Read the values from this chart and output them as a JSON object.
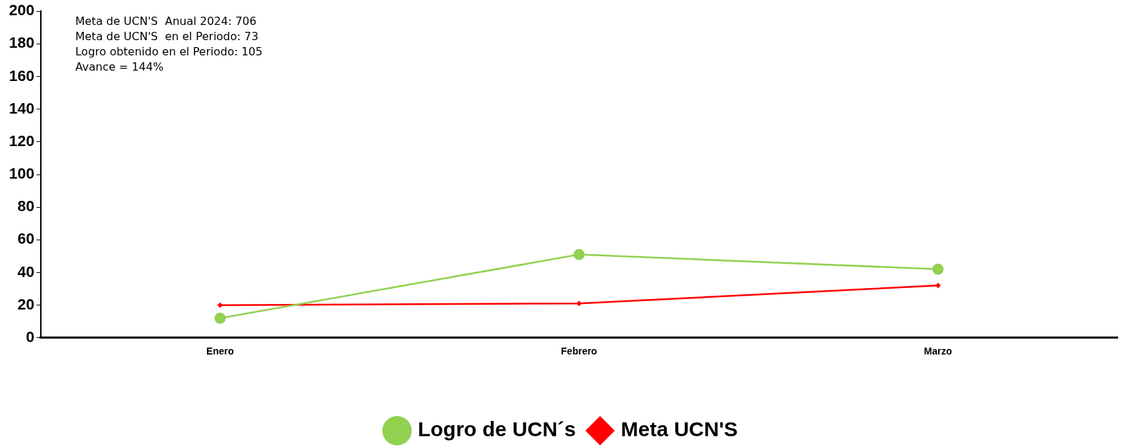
{
  "chart_data": {
    "type": "line",
    "categories": [
      "Enero",
      "Febrero",
      "Marzo"
    ],
    "series": [
      {
        "name": "Logro de UCN´s",
        "color": "#92d050",
        "values": [
          12,
          51,
          42
        ],
        "marker": "circle"
      },
      {
        "name": "Meta UCN'S",
        "color": "#ff0000",
        "values": [
          20,
          21,
          32
        ],
        "marker": "diamond"
      }
    ],
    "ylim": [
      0,
      200
    ],
    "yticks": [
      0,
      20,
      40,
      60,
      80,
      100,
      120,
      140,
      160,
      180,
      200
    ],
    "grid": false,
    "legend": "bottom",
    "annotations": [
      "Meta de UCN'S  Anual 2024: 706",
      "Meta de UCN'S  en el Periodo: 73",
      "Logro obtenido en el Periodo: 105",
      "Avance = 144%"
    ]
  }
}
